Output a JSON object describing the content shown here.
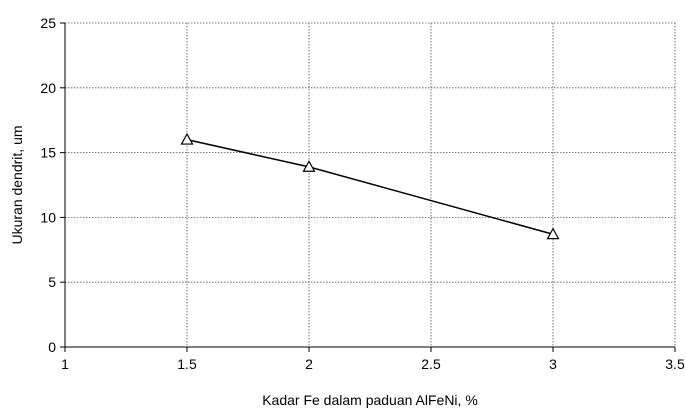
{
  "chart_data": {
    "type": "scatter",
    "title": "",
    "xlabel": "Kadar Fe dalam paduan AlFeNi, %",
    "ylabel": "Ukuran dendrit, um",
    "xlim": [
      1,
      3.5
    ],
    "ylim": [
      0,
      25
    ],
    "xticks": [
      1,
      1.5,
      2,
      2.5,
      3,
      3.5
    ],
    "yticks": [
      0,
      5,
      10,
      15,
      20,
      25
    ],
    "xtick_labels": [
      "1",
      "1.5",
      "2",
      "2.5",
      "3",
      "3.5"
    ],
    "ytick_labels": [
      "0",
      "5",
      "10",
      "15",
      "20",
      "25"
    ],
    "grid": true,
    "legend": "none",
    "series": [
      {
        "marker": "triangle-open",
        "line": "solid",
        "color": "#000000",
        "x": [
          1.5,
          2,
          3
        ],
        "y": [
          16.0,
          13.9,
          8.7
        ]
      }
    ]
  }
}
